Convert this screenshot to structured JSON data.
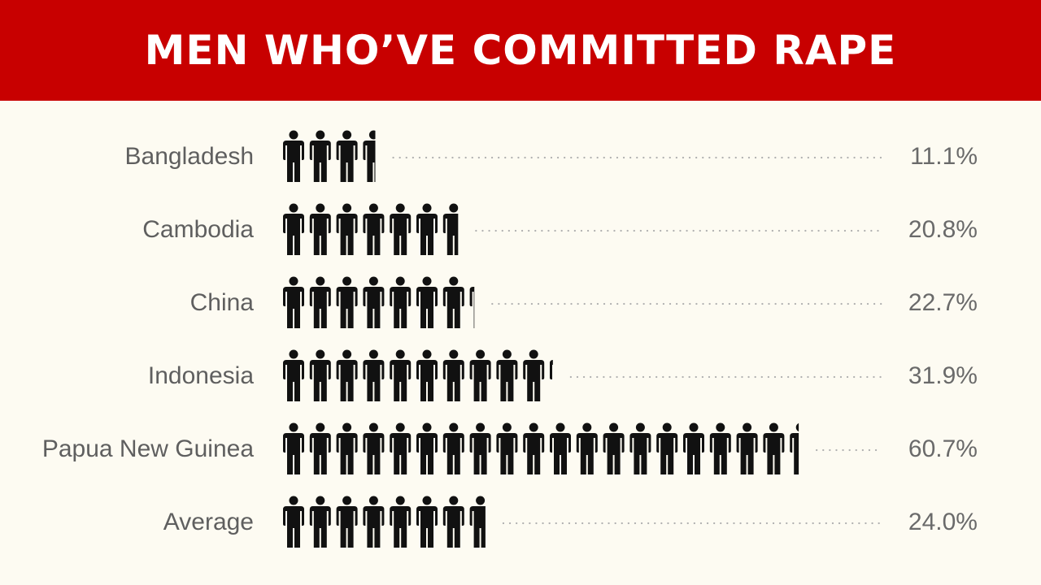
{
  "header": {
    "title": "MEN WHO’VE COMMITTED RAPE"
  },
  "colors": {
    "banner": "#c80000",
    "background": "#fdfbf2",
    "icon": "#111111",
    "dots": "#b0b0b0",
    "text": "#5f5f5f"
  },
  "icon_name": "man-figure-icon",
  "chart_data": {
    "type": "bar",
    "categories": [
      "Bangladesh",
      "Cambodia",
      "China",
      "Indonesia",
      "Papua New Guinea",
      "Average"
    ],
    "values": [
      11.1,
      20.8,
      22.7,
      31.9,
      60.7,
      24.0
    ],
    "value_labels": [
      "11.1%",
      "20.8%",
      "22.7%",
      "31.9%",
      "60.7%",
      "24.0%"
    ],
    "unit": "%",
    "percent_per_icon": 3.125,
    "title": "MEN WHO’VE COMMITTED RAPE",
    "xlabel": "",
    "ylabel": "",
    "grid": false
  }
}
